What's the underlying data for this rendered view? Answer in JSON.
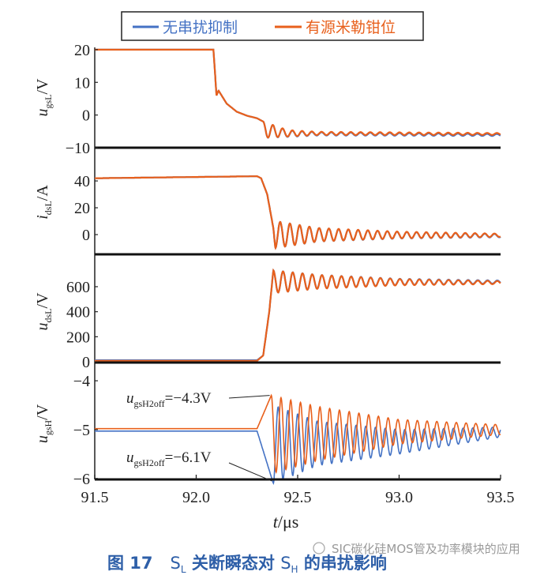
{
  "legend": {
    "items": [
      {
        "label": "无串扰抑制",
        "color": "#4472c4"
      },
      {
        "label": "有源米勒钳位",
        "color": "#e8601c"
      }
    ]
  },
  "caption": {
    "fig": "图 17",
    "s1": "S",
    "s1sub": "L",
    "mid": " 关断瞬态对 ",
    "s2": "S",
    "s2sub": "H",
    "end": " 的串扰影响"
  },
  "watermark": "SIC碳化硅MOS管及功率模块的应用",
  "chart_data": {
    "type": "line",
    "xlabel": {
      "main": "t",
      "unit": "/μs"
    },
    "xlim": [
      91.5,
      93.5
    ],
    "xticks": [
      "91.5",
      "92.0",
      "92.5",
      "93.0",
      "93.5"
    ],
    "xtick_values": [
      91.5,
      92.0,
      92.5,
      93.0,
      93.5
    ],
    "grid": false,
    "legend_placement": "top",
    "panels": [
      {
        "ylabel": {
          "main": "u",
          "sub": "gsL",
          "unit": "/V"
        },
        "ylim": [
          -10,
          20.7
        ],
        "yticks": [
          20,
          10,
          0,
          -10
        ],
        "ytick_labels": [
          "20",
          "10",
          "0",
          "−10"
        ],
        "series": [
          {
            "name": "无串扰抑制",
            "points": [
              [
                91.5,
                20
              ],
              [
                92.085,
                20
              ],
              [
                92.1,
                6
              ],
              [
                92.11,
                7.5
              ],
              [
                92.15,
                3.5
              ],
              [
                92.2,
                1
              ],
              [
                92.25,
                -0.2
              ],
              [
                92.3,
                -1
              ],
              [
                92.33,
                -2
              ]
            ],
            "ringing": {
              "start": 92.33,
              "period": 0.048,
              "phase": "peak",
              "center": [
                [
                  92.33,
                  -4.5
                ],
                [
                  92.45,
                  -5.7
                ],
                [
                  93.5,
                  -6.1
                ]
              ],
              "amplitude": [
                [
                  92.33,
                  2.5
                ],
                [
                  92.45,
                  1.0
                ],
                [
                  92.6,
                  0.5
                ],
                [
                  93.5,
                  0.3
                ]
              ]
            }
          },
          {
            "name": "有源米勒钳位",
            "points": [
              [
                91.5,
                20
              ],
              [
                92.085,
                20
              ],
              [
                92.1,
                6
              ],
              [
                92.11,
                7.5
              ],
              [
                92.15,
                3.5
              ],
              [
                92.2,
                1
              ],
              [
                92.25,
                -0.2
              ],
              [
                92.3,
                -1
              ],
              [
                92.33,
                -2
              ]
            ],
            "ringing": {
              "start": 92.33,
              "period": 0.048,
              "phase": "peak",
              "center": [
                [
                  92.33,
                  -4.5
                ],
                [
                  92.45,
                  -5.6
                ],
                [
                  93.5,
                  -5.8
                ]
              ],
              "amplitude": [
                [
                  92.33,
                  2.5
                ],
                [
                  92.45,
                  1.0
                ],
                [
                  92.6,
                  0.5
                ],
                [
                  93.5,
                  0.3
                ]
              ]
            }
          }
        ]
      },
      {
        "ylabel": {
          "main": "i",
          "sub": "dsL",
          "unit": "/A"
        },
        "ylim": [
          -14.7,
          63
        ],
        "yticks": [
          40,
          20,
          0
        ],
        "ytick_labels": [
          "40",
          "20",
          "0"
        ],
        "series": [
          {
            "name": "无串扰抑制",
            "points": [
              [
                91.5,
                42
              ],
              [
                92.3,
                43.5
              ],
              [
                92.32,
                42
              ],
              [
                92.35,
                30
              ],
              [
                92.38,
                5
              ],
              [
                92.39,
                -10
              ]
            ],
            "ringing": {
              "start": 92.39,
              "period": 0.048,
              "phase": "trough",
              "center": [
                [
                  92.39,
                  0
                ],
                [
                  93.5,
                  -0.8
                ]
              ],
              "amplitude": [
                [
                  92.39,
                  10
                ],
                [
                  92.6,
                  5
                ],
                [
                  93.0,
                  2.5
                ],
                [
                  93.5,
                  1.2
                ]
              ]
            }
          },
          {
            "name": "有源米勒钳位",
            "points": [
              [
                91.5,
                42
              ],
              [
                92.3,
                43.5
              ],
              [
                92.32,
                42
              ],
              [
                92.35,
                30
              ],
              [
                92.38,
                5
              ],
              [
                92.39,
                -10
              ]
            ],
            "ringing": {
              "start": 92.39,
              "period": 0.048,
              "phase": "trough",
              "center": [
                [
                  92.39,
                  0
                ],
                [
                  93.5,
                  -0.5
                ]
              ],
              "amplitude": [
                [
                  92.39,
                  10
                ],
                [
                  92.6,
                  5
                ],
                [
                  93.0,
                  2.5
                ],
                [
                  93.5,
                  1.2
                ]
              ]
            }
          }
        ]
      },
      {
        "ylabel": {
          "main": "u",
          "sub": "dsL",
          "unit": "/V"
        },
        "ylim": [
          -6,
          808
        ],
        "yticks": [
          600,
          400,
          200,
          0
        ],
        "ytick_labels": [
          "600",
          "400",
          "200",
          "0"
        ],
        "series": [
          {
            "name": "无串扰抑制",
            "points": [
              [
                91.5,
                12
              ],
              [
                92.3,
                12
              ],
              [
                92.33,
                50
              ],
              [
                92.36,
                400
              ],
              [
                92.38,
                730
              ]
            ],
            "ringing": {
              "start": 92.38,
              "period": 0.048,
              "phase": "peak",
              "center": [
                [
                  92.38,
                  640
                ],
                [
                  93.5,
                  637
                ]
              ],
              "amplitude": [
                [
                  92.38,
                  90
                ],
                [
                  92.6,
                  55
                ],
                [
                  93.0,
                  25
                ],
                [
                  93.5,
                  12
                ]
              ]
            }
          },
          {
            "name": "有源米勒钳位",
            "points": [
              [
                91.5,
                8
              ],
              [
                92.3,
                8
              ],
              [
                92.33,
                50
              ],
              [
                92.36,
                400
              ],
              [
                92.38,
                730
              ]
            ],
            "ringing": {
              "start": 92.38,
              "period": 0.048,
              "phase": "peak",
              "center": [
                [
                  92.38,
                  640
                ],
                [
                  93.5,
                  633
                ]
              ],
              "amplitude": [
                [
                  92.38,
                  90
                ],
                [
                  92.6,
                  55
                ],
                [
                  93.0,
                  25
                ],
                [
                  93.5,
                  12
                ]
              ]
            }
          }
        ]
      },
      {
        "ylabel": {
          "main": "u",
          "sub": "gsH",
          "unit": "/V"
        },
        "ylim": [
          -6.02,
          -3.74
        ],
        "yticks": [
          -4,
          -5,
          -6
        ],
        "ytick_labels": [
          "−4",
          "−5",
          "−6"
        ],
        "series": [
          {
            "name": "无串扰抑制",
            "points": [
              [
                91.5,
                -5.03
              ],
              [
                92.3,
                -5.03
              ],
              [
                92.38,
                -6.1
              ]
            ],
            "ringing": {
              "start": 92.38,
              "period": 0.048,
              "phase": "trough",
              "center": [
                [
                  92.38,
                  -5.3
                ],
                [
                  93.0,
                  -5.25
                ],
                [
                  93.5,
                  -5.05
                ]
              ],
              "amplitude": [
                [
                  92.38,
                  0.8
                ],
                [
                  92.6,
                  0.45
                ],
                [
                  93.0,
                  0.25
                ],
                [
                  93.5,
                  0.1
                ]
              ]
            }
          },
          {
            "name": "有源米勒钳位",
            "points": [
              [
                91.5,
                -4.98
              ],
              [
                92.3,
                -4.98
              ],
              [
                92.37,
                -4.3
              ]
            ],
            "ringing": {
              "start": 92.37,
              "period": 0.048,
              "phase": "peak",
              "center": [
                [
                  92.37,
                  -5.1
                ],
                [
                  93.5,
                  -5.0
                ]
              ],
              "amplitude": [
                [
                  92.37,
                  0.8
                ],
                [
                  92.6,
                  0.55
                ],
                [
                  93.0,
                  0.25
                ],
                [
                  93.5,
                  0.1
                ]
              ]
            }
          }
        ],
        "annotations": [
          {
            "main": "u",
            "sub": "gsH2off",
            "value": "=−4.3V",
            "at": [
              92.37,
              -4.3
            ]
          },
          {
            "main": "u",
            "sub": "gsH2off",
            "value": "=−6.1V",
            "at": [
              92.38,
              -6.1
            ]
          }
        ]
      }
    ]
  }
}
